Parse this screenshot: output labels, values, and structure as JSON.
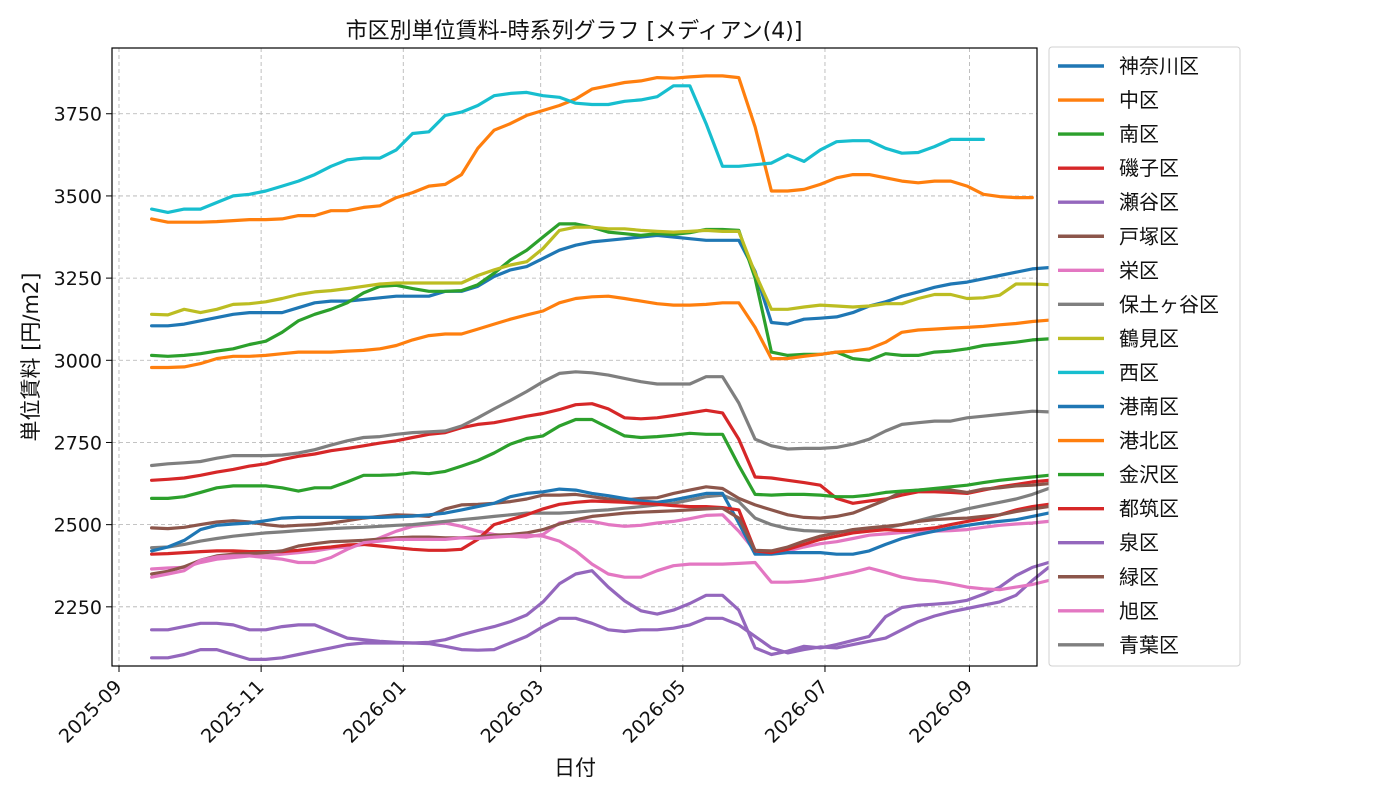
{
  "chart_data": {
    "type": "line",
    "title": "市区別単位賃料-時系列グラフ [メディアン(4)]",
    "xlabel": "日付",
    "ylabel": "単位賃料 [円/m2]",
    "x_start": "2025-09-15",
    "x_step_days": 7,
    "xlim": [
      "2025-08-29",
      "2026-09-30"
    ],
    "ylim": [
      2070,
      3950
    ],
    "x_ticks": [
      "2025-09",
      "2025-11",
      "2026-01",
      "2026-03",
      "2026-05",
      "2026-07",
      "2026-09"
    ],
    "y_ticks": [
      2250,
      2500,
      2750,
      3000,
      3250,
      3500,
      3750
    ],
    "grid": true,
    "legend_position": "outside-right",
    "series": [
      {
        "name": "神奈川区",
        "color": "#1f77b4",
        "values": [
          3105,
          3105,
          3110,
          3120,
          3130,
          3140,
          3145,
          3145,
          3145,
          3160,
          3175,
          3180,
          3180,
          3185,
          3190,
          3195,
          3195,
          3195,
          3210,
          3210,
          3225,
          3255,
          3275,
          3285,
          3310,
          3335,
          3350,
          3360,
          3365,
          3370,
          3375,
          3380,
          3375,
          3370,
          3365,
          3365,
          3365,
          3270,
          3115,
          3110,
          3125,
          3128,
          3132,
          3145,
          3165,
          3178,
          3195,
          3208,
          3222,
          3232,
          3238,
          3248,
          3258,
          3268,
          3278,
          3282
        ]
      },
      {
        "name": "中区",
        "color": "#ff7f0e",
        "values": [
          3430,
          3420,
          3420,
          3420,
          3422,
          3425,
          3428,
          3428,
          3430,
          3440,
          3440,
          3455,
          3455,
          3465,
          3470,
          3495,
          3510,
          3530,
          3535,
          3565,
          3645,
          3700,
          3720,
          3745,
          3760,
          3775,
          3795,
          3825,
          3835,
          3845,
          3850,
          3860,
          3858,
          3862,
          3865,
          3865,
          3860,
          3710,
          3515,
          3515,
          3520,
          3535,
          3555,
          3565,
          3565,
          3555,
          3545,
          3540,
          3545,
          3545,
          3530,
          3505,
          3498,
          3495,
          3495
        ]
      },
      {
        "name": "南区",
        "color": "#2ca02c",
        "values": [
          3015,
          3012,
          3015,
          3020,
          3028,
          3035,
          3048,
          3058,
          3085,
          3120,
          3140,
          3155,
          3175,
          3205,
          3225,
          3228,
          3218,
          3210,
          3210,
          3212,
          3230,
          3265,
          3305,
          3335,
          3375,
          3415,
          3415,
          3405,
          3390,
          3385,
          3380,
          3385,
          3383,
          3388,
          3398,
          3398,
          3395,
          3250,
          3025,
          3015,
          3018,
          3018,
          3025,
          3005,
          3000,
          3020,
          3015,
          3015,
          3025,
          3028,
          3035,
          3045,
          3050,
          3055,
          3062,
          3065
        ]
      },
      {
        "name": "磯子区",
        "color": "#d62728",
        "values": [
          2635,
          2638,
          2642,
          2650,
          2660,
          2668,
          2678,
          2685,
          2698,
          2708,
          2715,
          2725,
          2732,
          2740,
          2748,
          2755,
          2765,
          2775,
          2780,
          2795,
          2805,
          2810,
          2820,
          2830,
          2838,
          2850,
          2865,
          2868,
          2852,
          2825,
          2822,
          2825,
          2832,
          2840,
          2848,
          2840,
          2760,
          2645,
          2642,
          2635,
          2628,
          2620,
          2580,
          2565,
          2572,
          2578,
          2590,
          2600,
          2600,
          2598,
          2595,
          2605,
          2615,
          2622,
          2630,
          2635
        ]
      },
      {
        "name": "瀬谷区",
        "color": "#9467bd",
        "values": [
          2095,
          2095,
          2105,
          2120,
          2120,
          2105,
          2090,
          2090,
          2095,
          2105,
          2115,
          2125,
          2135,
          2140,
          2140,
          2140,
          2140,
          2138,
          2130,
          2120,
          2118,
          2120,
          2140,
          2160,
          2190,
          2215,
          2215,
          2200,
          2180,
          2175,
          2180,
          2180,
          2185,
          2195,
          2215,
          2215,
          2195,
          2160,
          2125,
          2110,
          2120,
          2128,
          2125,
          2135,
          2145,
          2155,
          2180,
          2205,
          2222,
          2235,
          2245,
          2255,
          2265,
          2285,
          2330,
          2370
        ]
      },
      {
        "name": "戸塚区",
        "color": "#8c564b",
        "values": [
          2490,
          2488,
          2492,
          2500,
          2508,
          2512,
          2508,
          2500,
          2495,
          2498,
          2500,
          2505,
          2512,
          2520,
          2525,
          2530,
          2528,
          2525,
          2548,
          2560,
          2562,
          2565,
          2570,
          2578,
          2590,
          2590,
          2592,
          2585,
          2578,
          2575,
          2580,
          2582,
          2595,
          2605,
          2615,
          2610,
          2580,
          2560,
          2545,
          2530,
          2522,
          2520,
          2525,
          2535,
          2555,
          2575,
          2600,
          2605,
          2608,
          2605,
          2598,
          2608,
          2612,
          2618,
          2620,
          2625
        ]
      },
      {
        "name": "栄区",
        "color": "#e377c2",
        "values": [
          2365,
          2368,
          2370,
          2385,
          2395,
          2400,
          2405,
          2405,
          2410,
          2415,
          2420,
          2428,
          2432,
          2440,
          2460,
          2480,
          2495,
          2500,
          2505,
          2495,
          2480,
          2470,
          2465,
          2462,
          2470,
          2505,
          2512,
          2510,
          2500,
          2495,
          2498,
          2505,
          2510,
          2518,
          2528,
          2530,
          2480,
          2420,
          2415,
          2420,
          2432,
          2442,
          2448,
          2458,
          2468,
          2472,
          2476,
          2478,
          2480,
          2482,
          2485,
          2492,
          2498,
          2502,
          2505,
          2510
        ]
      },
      {
        "name": "保土ヶ谷区",
        "color": "#7f7f7f",
        "values": [
          2430,
          2432,
          2440,
          2450,
          2458,
          2465,
          2470,
          2475,
          2478,
          2482,
          2485,
          2488,
          2490,
          2492,
          2495,
          2498,
          2500,
          2505,
          2510,
          2515,
          2520,
          2525,
          2530,
          2535,
          2535,
          2535,
          2538,
          2542,
          2545,
          2550,
          2555,
          2560,
          2565,
          2575,
          2585,
          2590,
          2570,
          2520,
          2500,
          2488,
          2482,
          2480,
          2478,
          2480,
          2484,
          2490,
          2500,
          2512,
          2525,
          2535,
          2548,
          2558,
          2568,
          2578,
          2592,
          2610
        ]
      },
      {
        "name": "鶴見区",
        "color": "#bcbd22",
        "values": [
          3140,
          3138,
          3155,
          3145,
          3155,
          3170,
          3172,
          3178,
          3188,
          3200,
          3208,
          3212,
          3218,
          3225,
          3232,
          3235,
          3235,
          3235,
          3235,
          3235,
          3258,
          3275,
          3290,
          3300,
          3340,
          3395,
          3405,
          3405,
          3400,
          3400,
          3395,
          3392,
          3390,
          3392,
          3395,
          3392,
          3392,
          3265,
          3155,
          3155,
          3162,
          3168,
          3165,
          3162,
          3165,
          3172,
          3172,
          3188,
          3200,
          3200,
          3188,
          3190,
          3198,
          3232,
          3232,
          3230
        ]
      },
      {
        "name": "西区",
        "color": "#17becf",
        "values": [
          3460,
          3450,
          3460,
          3460,
          3480,
          3500,
          3505,
          3515,
          3530,
          3545,
          3565,
          3590,
          3610,
          3615,
          3615,
          3640,
          3690,
          3695,
          3745,
          3755,
          3775,
          3805,
          3812,
          3815,
          3805,
          3800,
          3782,
          3778,
          3778,
          3788,
          3792,
          3802,
          3835,
          3835,
          3720,
          3590,
          3590,
          3595,
          3600,
          3625,
          3605,
          3640,
          3665,
          3668,
          3668,
          3645,
          3630,
          3632,
          3650,
          3672,
          3672,
          3672
        ]
      },
      {
        "name": "港南区",
        "color": "#1f77b4",
        "values": [
          2420,
          2432,
          2452,
          2485,
          2498,
          2502,
          2505,
          2512,
          2520,
          2522,
          2522,
          2522,
          2522,
          2522,
          2522,
          2524,
          2526,
          2530,
          2535,
          2545,
          2555,
          2565,
          2585,
          2595,
          2600,
          2608,
          2605,
          2595,
          2588,
          2580,
          2572,
          2568,
          2575,
          2585,
          2595,
          2595,
          2505,
          2410,
          2410,
          2415,
          2415,
          2415,
          2410,
          2410,
          2420,
          2440,
          2458,
          2470,
          2480,
          2490,
          2498,
          2505,
          2510,
          2515,
          2525,
          2535
        ]
      },
      {
        "name": "港北区",
        "color": "#ff7f0e",
        "values": [
          2978,
          2978,
          2980,
          2990,
          3005,
          3012,
          3012,
          3015,
          3020,
          3025,
          3025,
          3025,
          3028,
          3030,
          3035,
          3045,
          3062,
          3075,
          3080,
          3080,
          3095,
          3110,
          3125,
          3138,
          3150,
          3175,
          3188,
          3193,
          3195,
          3188,
          3180,
          3172,
          3168,
          3168,
          3170,
          3175,
          3175,
          3100,
          3005,
          3005,
          3012,
          3018,
          3025,
          3028,
          3035,
          3055,
          3085,
          3092,
          3095,
          3098,
          3100,
          3103,
          3108,
          3112,
          3118,
          3122
        ]
      },
      {
        "name": "金沢区",
        "color": "#2ca02c",
        "values": [
          2580,
          2580,
          2585,
          2598,
          2612,
          2618,
          2618,
          2618,
          2612,
          2602,
          2612,
          2612,
          2630,
          2650,
          2650,
          2652,
          2658,
          2655,
          2662,
          2678,
          2695,
          2718,
          2745,
          2762,
          2770,
          2800,
          2820,
          2820,
          2795,
          2770,
          2765,
          2768,
          2772,
          2778,
          2775,
          2775,
          2680,
          2592,
          2590,
          2592,
          2592,
          2590,
          2585,
          2585,
          2590,
          2598,
          2602,
          2605,
          2610,
          2615,
          2620,
          2628,
          2635,
          2640,
          2645,
          2650
        ]
      },
      {
        "name": "都筑区",
        "color": "#d62728",
        "values": [
          2410,
          2412,
          2415,
          2418,
          2420,
          2420,
          2418,
          2418,
          2418,
          2422,
          2428,
          2432,
          2438,
          2440,
          2435,
          2430,
          2425,
          2422,
          2422,
          2425,
          2455,
          2500,
          2515,
          2530,
          2548,
          2562,
          2568,
          2572,
          2570,
          2568,
          2565,
          2562,
          2558,
          2555,
          2555,
          2552,
          2545,
          2420,
          2415,
          2425,
          2440,
          2455,
          2465,
          2475,
          2480,
          2485,
          2482,
          2485,
          2490,
          2500,
          2510,
          2518,
          2530,
          2545,
          2555,
          2562
        ]
      },
      {
        "name": "泉区",
        "color": "#9467bd",
        "values": [
          2180,
          2180,
          2190,
          2200,
          2200,
          2195,
          2180,
          2180,
          2190,
          2195,
          2195,
          2175,
          2155,
          2150,
          2145,
          2142,
          2140,
          2142,
          2150,
          2165,
          2178,
          2190,
          2205,
          2225,
          2265,
          2320,
          2350,
          2360,
          2310,
          2268,
          2238,
          2228,
          2240,
          2260,
          2285,
          2285,
          2240,
          2125,
          2105,
          2115,
          2130,
          2125,
          2135,
          2148,
          2160,
          2220,
          2248,
          2255,
          2258,
          2262,
          2270,
          2288,
          2310,
          2345,
          2370,
          2385
        ]
      },
      {
        "name": "緑区",
        "color": "#8c564b",
        "values": [
          2350,
          2358,
          2372,
          2392,
          2405,
          2410,
          2412,
          2415,
          2420,
          2435,
          2442,
          2448,
          2450,
          2452,
          2456,
          2460,
          2462,
          2462,
          2460,
          2460,
          2463,
          2468,
          2470,
          2475,
          2485,
          2502,
          2515,
          2525,
          2530,
          2535,
          2538,
          2540,
          2542,
          2545,
          2548,
          2550,
          2520,
          2422,
          2420,
          2432,
          2450,
          2465,
          2475,
          2485,
          2490,
          2495,
          2500,
          2510,
          2515,
          2518,
          2520,
          2525,
          2530,
          2540,
          2548,
          2555,
          2560
        ]
      },
      {
        "name": "旭区",
        "color": "#e377c2",
        "values": [
          2340,
          2350,
          2360,
          2392,
          2402,
          2405,
          2405,
          2400,
          2395,
          2385,
          2385,
          2400,
          2425,
          2445,
          2450,
          2455,
          2455,
          2455,
          2455,
          2460,
          2458,
          2462,
          2465,
          2468,
          2465,
          2450,
          2420,
          2380,
          2350,
          2340,
          2340,
          2360,
          2375,
          2380,
          2380,
          2380,
          2382,
          2385,
          2325,
          2325,
          2328,
          2335,
          2345,
          2355,
          2368,
          2355,
          2340,
          2332,
          2328,
          2320,
          2310,
          2305,
          2302,
          2310,
          2318,
          2330
        ]
      },
      {
        "name": "青葉区",
        "color": "#7f7f7f",
        "values": [
          2680,
          2685,
          2688,
          2692,
          2702,
          2710,
          2710,
          2710,
          2712,
          2718,
          2728,
          2742,
          2755,
          2765,
          2768,
          2775,
          2780,
          2782,
          2785,
          2800,
          2825,
          2852,
          2878,
          2905,
          2935,
          2960,
          2965,
          2962,
          2955,
          2945,
          2935,
          2928,
          2928,
          2928,
          2950,
          2950,
          2870,
          2760,
          2740,
          2730,
          2732,
          2732,
          2735,
          2745,
          2760,
          2785,
          2805,
          2810,
          2815,
          2815,
          2825,
          2830,
          2835,
          2840,
          2845,
          2843
        ]
      }
    ]
  }
}
